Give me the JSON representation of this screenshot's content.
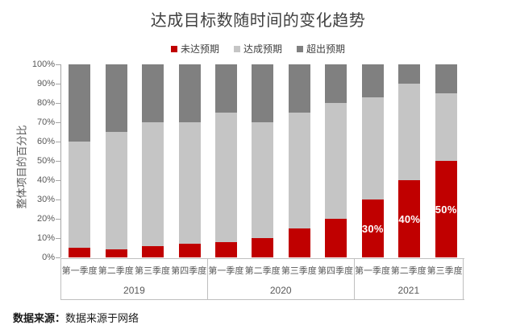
{
  "chart_data": {
    "type": "bar",
    "stacked": true,
    "percent_stacked": true,
    "title": "达成目标数随时间的变化趋势",
    "ylabel": "整体项目的百分比",
    "xlabel": "",
    "ylim": [
      0,
      100
    ],
    "grid": false,
    "legend_position": "top",
    "yticks": [
      "0%",
      "10%",
      "20%",
      "30%",
      "40%",
      "50%",
      "60%",
      "70%",
      "80%",
      "90%",
      "100%"
    ],
    "categories": [
      "第一季度",
      "第二季度",
      "第三季度",
      "第四季度",
      "第一季度",
      "第二季度",
      "第三季度",
      "第四季度",
      "第一季度",
      "第二季度",
      "第三季度"
    ],
    "year_groups": [
      {
        "label": "2019",
        "span": 4
      },
      {
        "label": "2020",
        "span": 4
      },
      {
        "label": "2021",
        "span": 3
      }
    ],
    "series": [
      {
        "name": "未达预期",
        "color": "#C00000",
        "values": [
          5,
          4,
          6,
          7,
          8,
          10,
          15,
          20,
          30,
          40,
          50
        ]
      },
      {
        "name": "达成预期",
        "color": "#C5C5C5",
        "values": [
          55,
          61,
          64,
          63,
          67,
          60,
          60,
          60,
          53,
          50,
          35
        ]
      },
      {
        "name": "超出预期",
        "color": "#808080",
        "values": [
          40,
          35,
          30,
          30,
          25,
          30,
          25,
          20,
          17,
          10,
          15
        ]
      }
    ],
    "data_labels": [
      "",
      "",
      "",
      "",
      "",
      "",
      "",
      "",
      "30%",
      "40%",
      "50%"
    ]
  },
  "footer": {
    "source_label": "数据来源：",
    "source_text": "数据来源于网络"
  }
}
